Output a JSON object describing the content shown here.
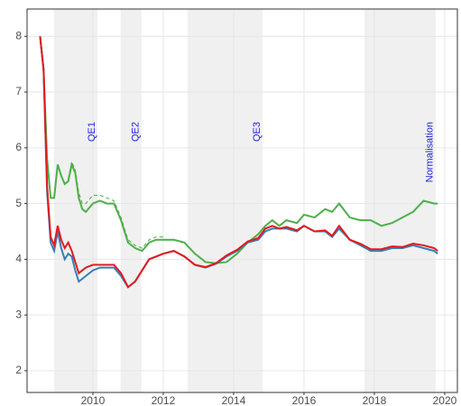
{
  "chart_data": {
    "type": "line",
    "x": [
      2008.5,
      2008.6,
      2008.7,
      2008.8,
      2008.9,
      2009.0,
      2009.1,
      2009.2,
      2009.3,
      2009.4,
      2009.5,
      2009.6,
      2009.7,
      2009.8,
      2010.0,
      2010.2,
      2010.4,
      2010.6,
      2010.8,
      2011.0,
      2011.2,
      2011.4,
      2011.6,
      2011.8,
      2012.0,
      2012.3,
      2012.6,
      2012.9,
      2013.2,
      2013.5,
      2013.8,
      2014.1,
      2014.4,
      2014.7,
      2014.9,
      2015.1,
      2015.3,
      2015.5,
      2015.8,
      2016.0,
      2016.3,
      2016.6,
      2016.8,
      2017.0,
      2017.3,
      2017.6,
      2017.9,
      2018.2,
      2018.5,
      2018.8,
      2019.1,
      2019.4,
      2019.7,
      2019.8
    ],
    "series": [
      {
        "color": "#4daf4a",
        "dashed": false,
        "values": [
          8.0,
          7.4,
          5.8,
          5.1,
          5.1,
          5.7,
          5.5,
          5.35,
          5.4,
          5.7,
          5.55,
          5.1,
          4.9,
          4.85,
          5.0,
          5.05,
          5.0,
          5.0,
          4.7,
          4.3,
          4.2,
          4.15,
          4.3,
          4.35,
          4.35,
          4.35,
          4.3,
          4.1,
          3.95,
          3.93,
          3.95,
          4.1,
          4.3,
          4.45,
          4.6,
          4.7,
          4.6,
          4.7,
          4.65,
          4.8,
          4.75,
          4.9,
          4.85,
          5.0,
          4.75,
          4.7,
          4.7,
          4.6,
          4.65,
          4.75,
          4.85,
          5.05,
          5.0,
          5.0
        ]
      },
      {
        "color": "#4daf4a",
        "dashed": true,
        "values": [
          null,
          null,
          null,
          null,
          null,
          null,
          null,
          null,
          5.45,
          5.75,
          5.6,
          5.2,
          5.0,
          5.0,
          5.15,
          5.15,
          5.1,
          5.05,
          4.75,
          4.35,
          4.25,
          4.2,
          4.35,
          4.4,
          4.4,
          null,
          null,
          null,
          null,
          null,
          null,
          null,
          null,
          null,
          null,
          null,
          null,
          null,
          null,
          null,
          null,
          null,
          null,
          null,
          null,
          null,
          null,
          null,
          null,
          null,
          null,
          null,
          null,
          null
        ]
      },
      {
        "color": "#377eb8",
        "dashed": false,
        "values": [
          8.0,
          7.4,
          5.2,
          4.3,
          4.15,
          4.5,
          4.2,
          4.0,
          4.1,
          4.05,
          3.8,
          3.6,
          3.65,
          3.7,
          3.8,
          3.85,
          3.85,
          3.85,
          3.7,
          3.5,
          3.6,
          3.8,
          4.0,
          4.05,
          4.1,
          4.15,
          4.05,
          3.9,
          3.85,
          3.92,
          4.05,
          4.15,
          4.3,
          4.35,
          4.5,
          4.55,
          4.55,
          4.55,
          4.5,
          4.6,
          4.5,
          4.5,
          4.4,
          4.55,
          4.35,
          4.25,
          4.15,
          4.15,
          4.2,
          4.2,
          4.25,
          4.2,
          4.15,
          4.1
        ]
      },
      {
        "color": "#e41a1c",
        "dashed": false,
        "values": [
          8.0,
          7.4,
          5.3,
          4.4,
          4.25,
          4.6,
          4.35,
          4.2,
          4.3,
          4.15,
          3.95,
          3.75,
          3.8,
          3.85,
          3.9,
          3.9,
          3.9,
          3.9,
          3.75,
          3.5,
          3.6,
          3.8,
          4.0,
          4.05,
          4.1,
          4.15,
          4.05,
          3.9,
          3.86,
          3.93,
          4.07,
          4.17,
          4.32,
          4.38,
          4.55,
          4.6,
          4.55,
          4.58,
          4.52,
          4.6,
          4.5,
          4.52,
          4.42,
          4.6,
          4.35,
          4.28,
          4.18,
          4.18,
          4.23,
          4.22,
          4.28,
          4.25,
          4.2,
          4.15
        ]
      }
    ],
    "shaded": [
      {
        "label": "QE1",
        "start": 2008.9,
        "end": 2010.13
      },
      {
        "label": "QE2",
        "start": 2010.79,
        "end": 2011.38
      },
      {
        "label": "QE3",
        "start": 2012.69,
        "end": 2014.82
      },
      {
        "label": "Normalisation",
        "start": 2017.72,
        "end": 2019.74
      }
    ],
    "shade_color": "#f0f0f0",
    "label_color": "#2222dd",
    "xlim": [
      2008.13,
      2020.36
    ],
    "xticks": [
      2010,
      2012,
      2014,
      2016,
      2018,
      2020
    ],
    "ylim": [
      1.61,
      8.49
    ],
    "yticks": [
      2,
      3,
      4,
      5,
      6,
      7,
      8
    ],
    "grid": true
  }
}
